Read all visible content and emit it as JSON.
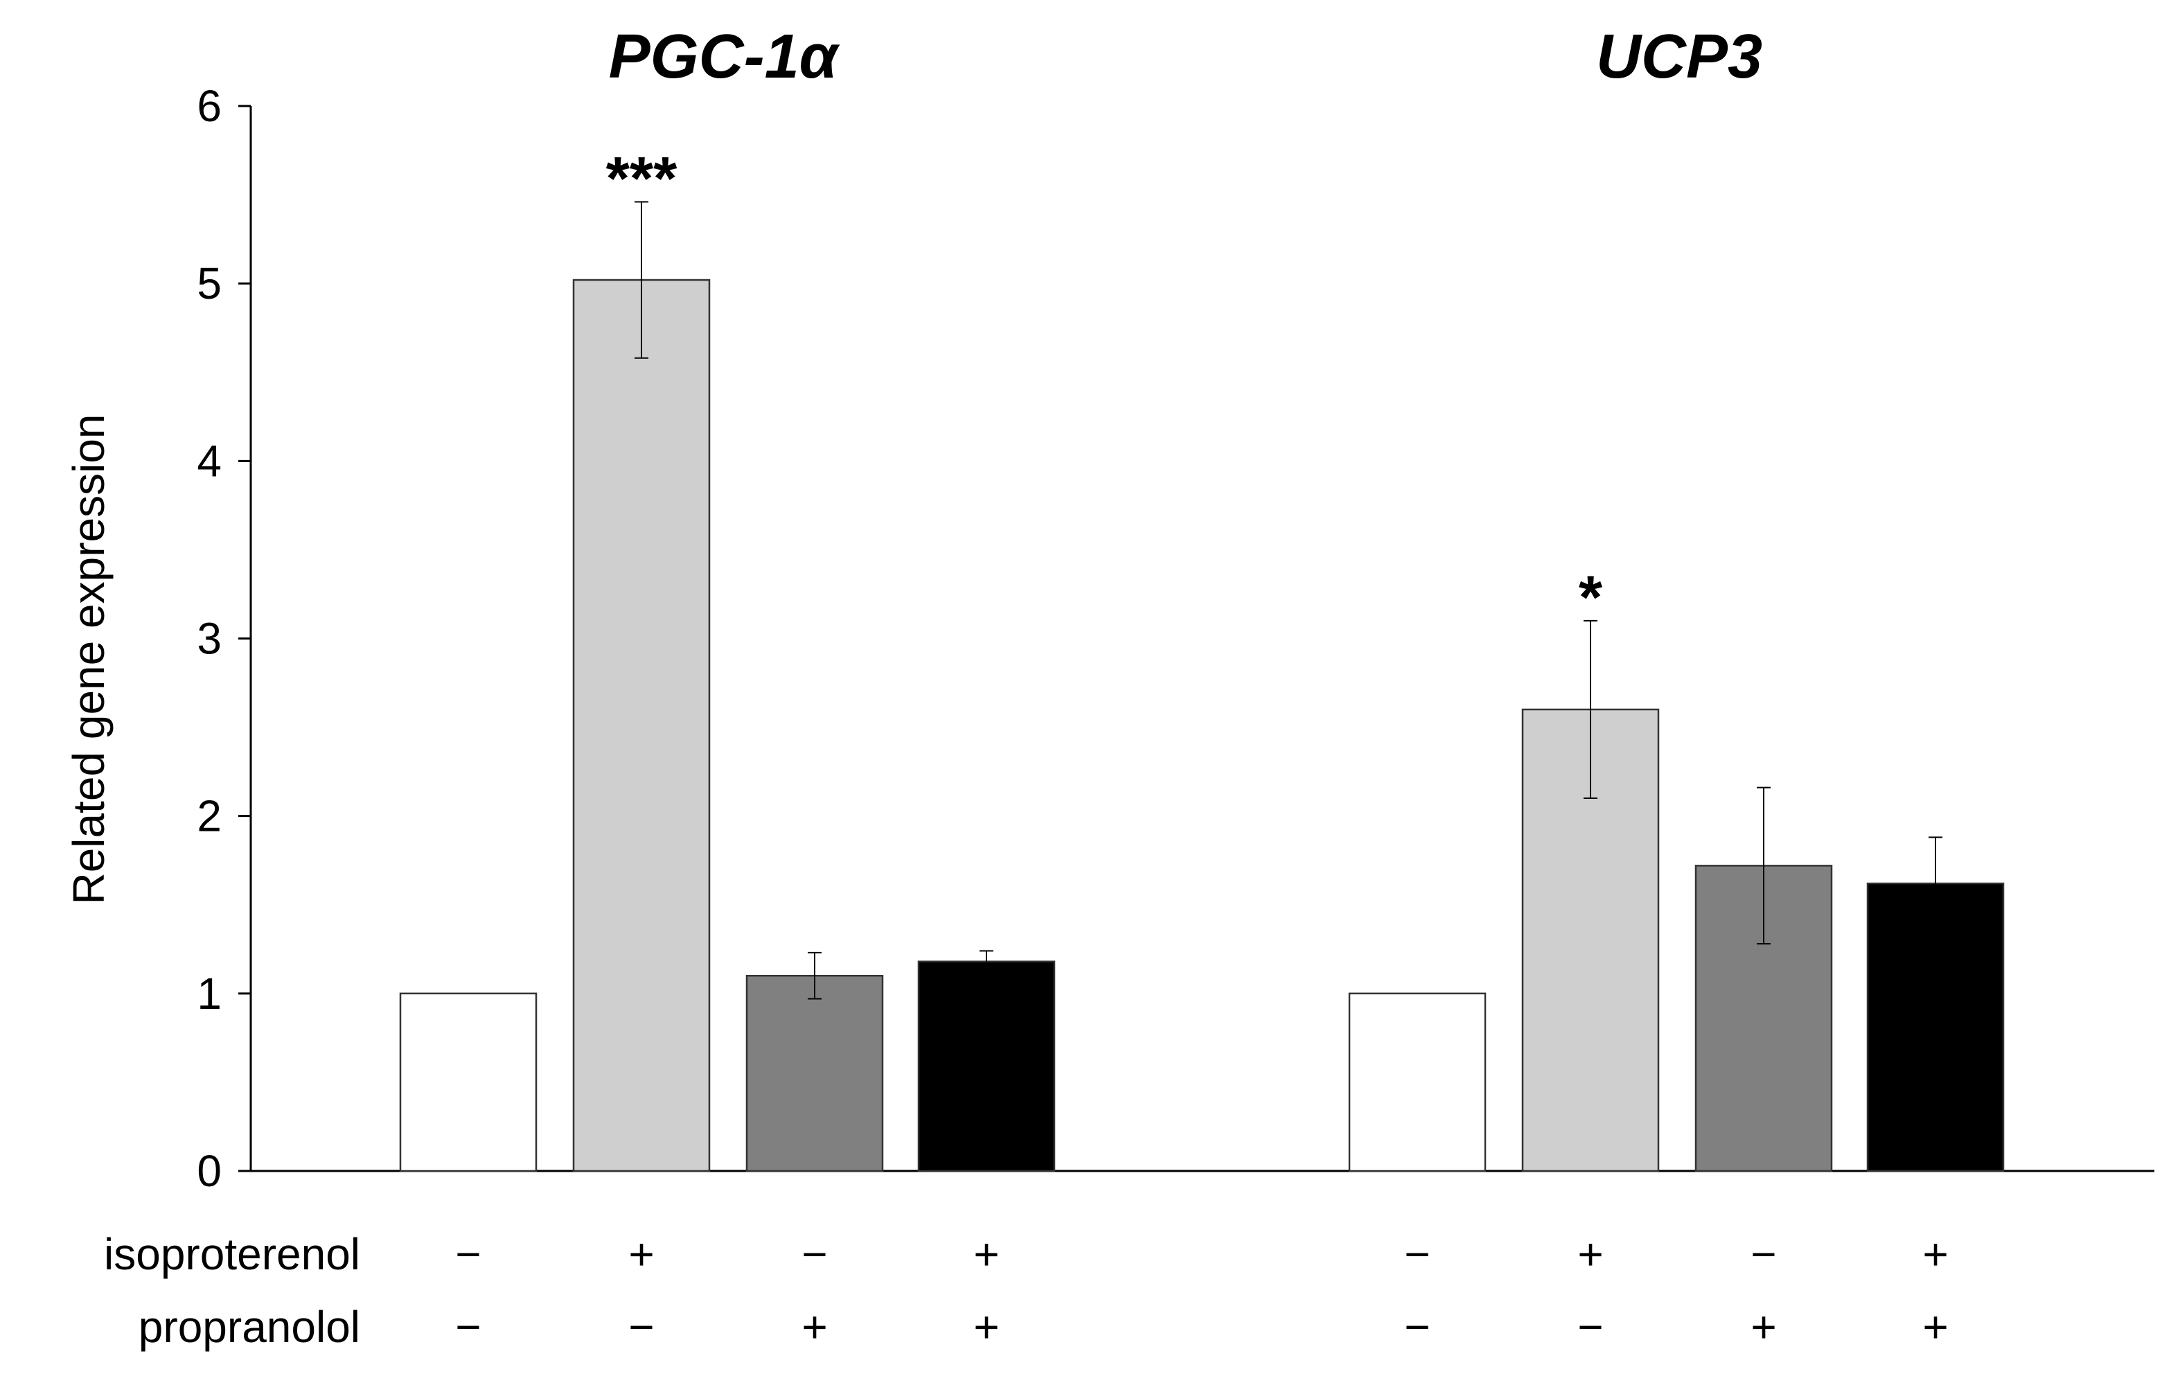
{
  "chart_data": {
    "type": "bar",
    "ylabel": "Related gene expression",
    "xlabel": "",
    "ylim": [
      0,
      6
    ],
    "yticks": [
      0,
      1,
      2,
      3,
      4,
      5,
      6
    ],
    "grid": false,
    "legend": "none",
    "bar_colors": [
      "#ffffff",
      "#d0cfcf",
      "#808080",
      "#000000"
    ],
    "treatments": {
      "rows": [
        {
          "label": "isoproterenol",
          "signs": [
            "−",
            "+",
            "−",
            "+"
          ]
        },
        {
          "label": "propranolol",
          "signs": [
            "−",
            "−",
            "+",
            "+"
          ]
        }
      ]
    },
    "panels": [
      {
        "title": "PGC-1α",
        "values": [
          1.0,
          5.02,
          1.1,
          1.18
        ],
        "errors": [
          0.0,
          0.44,
          0.13,
          0.06
        ],
        "annotations": [
          {
            "bar": 1,
            "text": "***"
          }
        ]
      },
      {
        "title": "UCP3",
        "values": [
          1.0,
          2.6,
          1.72,
          1.62
        ],
        "errors": [
          0.0,
          0.5,
          0.44,
          0.26
        ],
        "annotations": [
          {
            "bar": 1,
            "text": "*"
          }
        ]
      }
    ]
  }
}
